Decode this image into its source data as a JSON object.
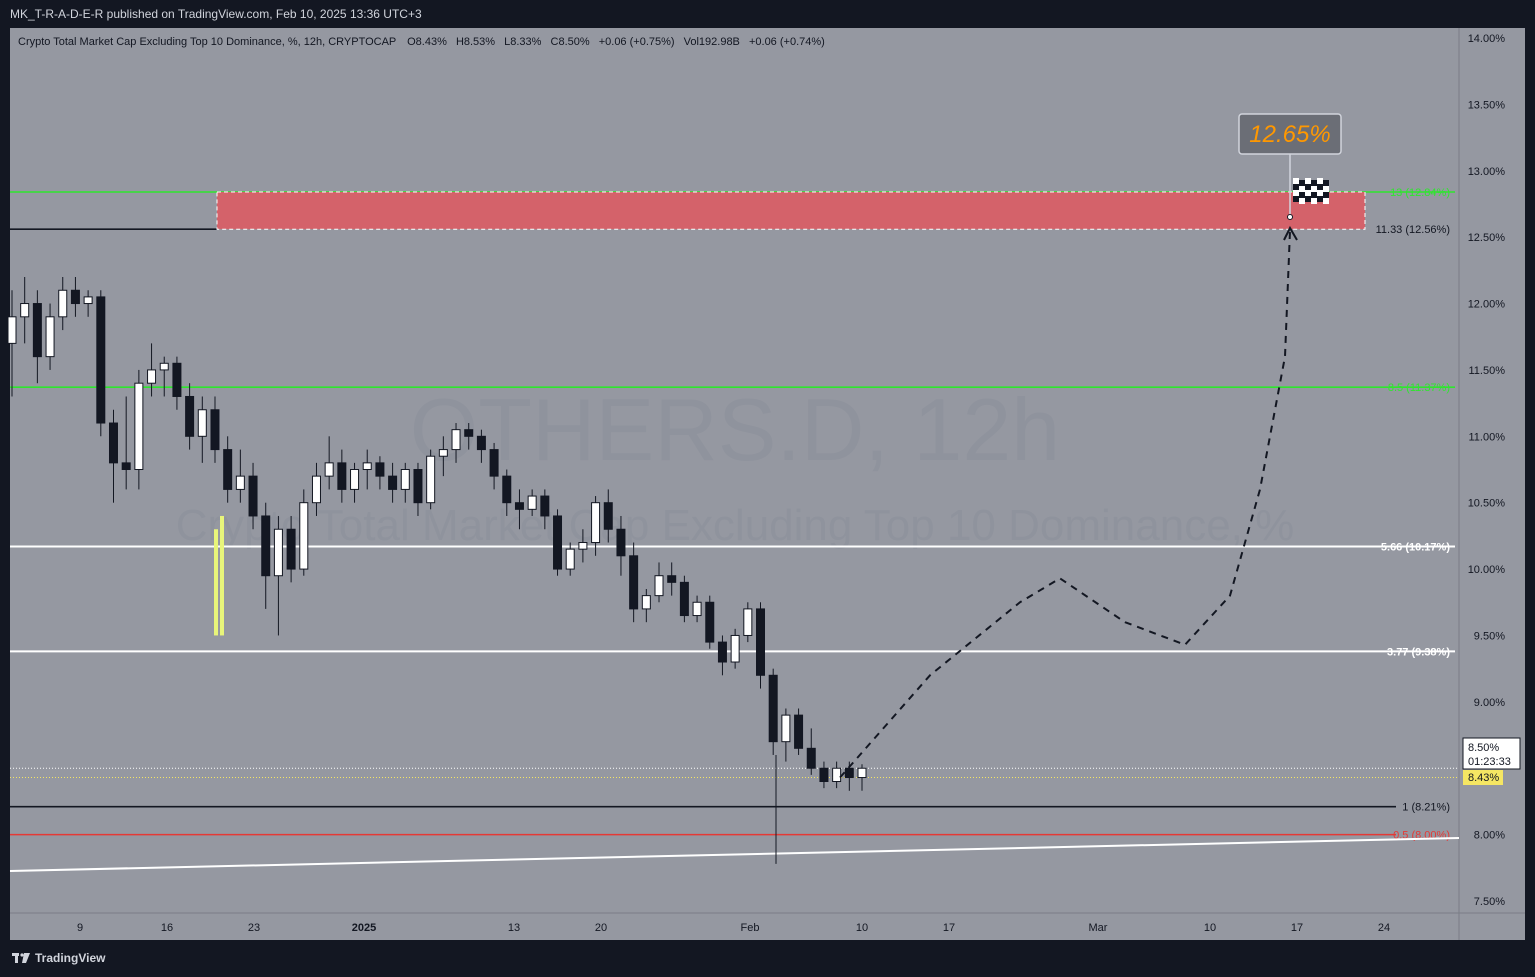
{
  "header": {
    "published": "MK_T-R-A-D-E-R published on TradingView.com, Feb 10, 2025 13:36 UTC+3"
  },
  "footer": {
    "logo_text": "TradingView"
  },
  "legend": {
    "title": "Crypto Total Market Cap Excluding Top 10 Dominance, %, 12h, CRYPTOCAP",
    "open": "O8.43%",
    "high": "H8.53%",
    "low": "L8.33%",
    "close": "C8.50%",
    "change": "+0.06 (+0.75%)",
    "volume": "Vol192.98B",
    "vol_change": "+0.06 (+0.74%)"
  },
  "watermark": {
    "line1": "OTHERS.D, 12h",
    "line2": "Crypto Total Market Cap Excluding Top 10 Dominance, %"
  },
  "colors": {
    "plot_bg": "#9598a1",
    "green_level": "#2ee62e",
    "white_level": "#ffffff",
    "red_level": "#e53935",
    "zone_fill": "#d4626a",
    "highlight_candle": "#e8f57a",
    "target_text": "#ff9800"
  },
  "chart_data": {
    "type": "candlestick",
    "symbol": "OTHERS.D",
    "timeframe": "12h",
    "ylim": [
      7.5,
      14.0
    ],
    "yticks": [
      "14.00%",
      "13.50%",
      "13.00%",
      "12.50%",
      "12.00%",
      "11.50%",
      "11.00%",
      "10.50%",
      "10.00%",
      "9.50%",
      "9.00%",
      "8.00%",
      "7.50%"
    ],
    "xticks": [
      "9",
      "16",
      "23",
      "2025",
      "13",
      "20",
      "Feb",
      "10",
      "17",
      "Mar",
      "10",
      "17",
      "24"
    ],
    "current_price": {
      "value": "8.50%",
      "countdown": "01:23:33",
      "open_label": "8.43%"
    },
    "levels": [
      {
        "label": "13 (12.84%)",
        "value": 12.84,
        "color": "green"
      },
      {
        "label": "11.33 (12.56%)",
        "value": 12.56,
        "color": "black"
      },
      {
        "label": "8.5 (11.37%)",
        "value": 11.37,
        "color": "green"
      },
      {
        "label": "5.66 (10.17%)",
        "value": 10.17,
        "color": "white"
      },
      {
        "label": "3.77 (9.38%)",
        "value": 9.38,
        "color": "white"
      },
      {
        "label": "1 (8.21%)",
        "value": 8.21,
        "color": "black"
      },
      {
        "label": "0.5 (8.00%)",
        "value": 8.0,
        "color": "red"
      }
    ],
    "target_zone": {
      "low": 12.56,
      "high": 12.84
    },
    "target_label": "12.65%",
    "projection": [
      [
        8.43,
        0
      ],
      [
        9.2,
        1
      ],
      [
        9.75,
        2
      ],
      [
        9.93,
        3
      ],
      [
        9.6,
        4
      ],
      [
        9.43,
        5
      ],
      [
        9.8,
        6
      ],
      [
        10.6,
        7
      ],
      [
        11.6,
        8
      ],
      [
        12.55,
        9
      ]
    ],
    "candles": [
      [
        11.7,
        12.1,
        11.3,
        11.9
      ],
      [
        11.9,
        12.2,
        11.7,
        12.0
      ],
      [
        12.0,
        12.1,
        11.4,
        11.6
      ],
      [
        11.6,
        12.0,
        11.5,
        11.9
      ],
      [
        11.9,
        12.2,
        11.8,
        12.1
      ],
      [
        12.1,
        12.2,
        11.9,
        12.0
      ],
      [
        12.0,
        12.1,
        11.9,
        12.05
      ],
      [
        12.05,
        12.1,
        11.0,
        11.1
      ],
      [
        11.1,
        11.2,
        10.5,
        10.8
      ],
      [
        10.8,
        11.3,
        10.6,
        10.75
      ],
      [
        10.75,
        11.5,
        10.6,
        11.4
      ],
      [
        11.4,
        11.7,
        11.3,
        11.5
      ],
      [
        11.5,
        11.6,
        11.3,
        11.55
      ],
      [
        11.55,
        11.6,
        11.2,
        11.3
      ],
      [
        11.3,
        11.4,
        10.9,
        11.0
      ],
      [
        11.0,
        11.3,
        10.8,
        11.2
      ],
      [
        11.2,
        11.3,
        10.8,
        10.9
      ],
      [
        10.9,
        11.0,
        10.5,
        10.6
      ],
      [
        10.6,
        10.9,
        10.5,
        10.7
      ],
      [
        10.7,
        10.8,
        10.3,
        10.4
      ],
      [
        10.4,
        10.5,
        9.7,
        9.95
      ],
      [
        9.95,
        10.4,
        9.5,
        10.3
      ],
      [
        10.3,
        10.4,
        9.9,
        10.0
      ],
      [
        10.0,
        10.6,
        9.95,
        10.5
      ],
      [
        10.5,
        10.8,
        10.4,
        10.7
      ],
      [
        10.7,
        11.0,
        10.6,
        10.8
      ],
      [
        10.8,
        10.9,
        10.5,
        10.6
      ],
      [
        10.6,
        10.8,
        10.5,
        10.75
      ],
      [
        10.75,
        10.9,
        10.6,
        10.8
      ],
      [
        10.8,
        10.85,
        10.6,
        10.7
      ],
      [
        10.7,
        10.8,
        10.5,
        10.6
      ],
      [
        10.6,
        10.8,
        10.5,
        10.75
      ],
      [
        10.75,
        10.8,
        10.4,
        10.5
      ],
      [
        10.5,
        10.9,
        10.45,
        10.85
      ],
      [
        10.85,
        11.0,
        10.7,
        10.9
      ],
      [
        10.9,
        11.1,
        10.8,
        11.05
      ],
      [
        11.05,
        11.1,
        10.9,
        11.0
      ],
      [
        11.0,
        11.05,
        10.8,
        10.9
      ],
      [
        10.9,
        10.95,
        10.6,
        10.7
      ],
      [
        10.7,
        10.75,
        10.4,
        10.5
      ],
      [
        10.5,
        10.6,
        10.3,
        10.45
      ],
      [
        10.45,
        10.6,
        10.4,
        10.55
      ],
      [
        10.55,
        10.6,
        10.3,
        10.4
      ],
      [
        10.4,
        10.45,
        9.95,
        10.0
      ],
      [
        10.0,
        10.2,
        9.95,
        10.15
      ],
      [
        10.15,
        10.3,
        10.05,
        10.2
      ],
      [
        10.2,
        10.55,
        10.1,
        10.5
      ],
      [
        10.5,
        10.6,
        10.2,
        10.3
      ],
      [
        10.3,
        10.4,
        9.95,
        10.1
      ],
      [
        10.1,
        10.2,
        9.6,
        9.7
      ],
      [
        9.7,
        9.85,
        9.6,
        9.8
      ],
      [
        9.8,
        10.05,
        9.75,
        9.95
      ],
      [
        9.95,
        10.05,
        9.8,
        9.9
      ],
      [
        9.9,
        9.95,
        9.6,
        9.65
      ],
      [
        9.65,
        9.8,
        9.6,
        9.75
      ],
      [
        9.75,
        9.8,
        9.4,
        9.45
      ],
      [
        9.45,
        9.5,
        9.2,
        9.3
      ],
      [
        9.3,
        9.55,
        9.25,
        9.5
      ],
      [
        9.5,
        9.75,
        9.45,
        9.7
      ],
      [
        9.7,
        9.75,
        9.1,
        9.2
      ],
      [
        9.2,
        9.25,
        8.6,
        8.7
      ],
      [
        8.7,
        8.95,
        8.55,
        8.9
      ],
      [
        8.9,
        8.95,
        8.6,
        8.65
      ],
      [
        8.65,
        8.8,
        8.45,
        8.5
      ],
      [
        8.5,
        8.55,
        8.35,
        8.4
      ],
      [
        8.4,
        8.55,
        8.35,
        8.5
      ],
      [
        8.5,
        8.55,
        8.33,
        8.43
      ],
      [
        8.43,
        8.53,
        8.33,
        8.5
      ]
    ]
  }
}
